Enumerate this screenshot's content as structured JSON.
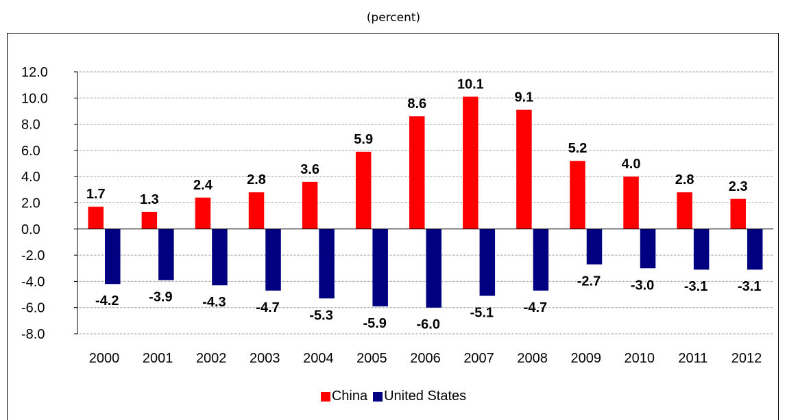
{
  "chart_data": {
    "type": "bar",
    "subtitle": "(percent)",
    "categories": [
      "2000",
      "2001",
      "2002",
      "2003",
      "2004",
      "2005",
      "2006",
      "2007",
      "2008",
      "2009",
      "2010",
      "2011",
      "2012"
    ],
    "series": [
      {
        "name": "China",
        "color": "#ff0000",
        "values": [
          1.7,
          1.3,
          2.4,
          2.8,
          3.6,
          5.9,
          8.6,
          10.1,
          9.1,
          5.2,
          4.0,
          2.8,
          2.3
        ],
        "labels": [
          "1.7",
          "1.3",
          "2.4",
          "2.8",
          "3.6",
          "5.9",
          "8.6",
          "10.1",
          "9.1",
          "5.2",
          "4.0",
          "2.8",
          "2.3"
        ]
      },
      {
        "name": "United States",
        "color": "#000080",
        "values": [
          -4.2,
          -3.9,
          -4.3,
          -4.7,
          -5.3,
          -5.9,
          -6.0,
          -5.1,
          -4.7,
          -2.7,
          -3.0,
          -3.1,
          -3.1
        ],
        "labels": [
          "-4.2",
          "-3.9",
          "-4.3",
          "-4.7",
          "-5.3",
          "-5.9",
          "-6.0",
          "-5.1",
          "-4.7",
          "-2.7",
          "-3.0",
          "-3.1",
          "-3.1"
        ]
      }
    ],
    "ylim": [
      -8,
      12
    ],
    "yticks": [
      "-8.0",
      "-6.0",
      "-4.0",
      "-2.0",
      "0.0",
      "2.0",
      "4.0",
      "6.0",
      "8.0",
      "10.0",
      "12.0"
    ],
    "grid": true,
    "legend_position": "bottom"
  }
}
